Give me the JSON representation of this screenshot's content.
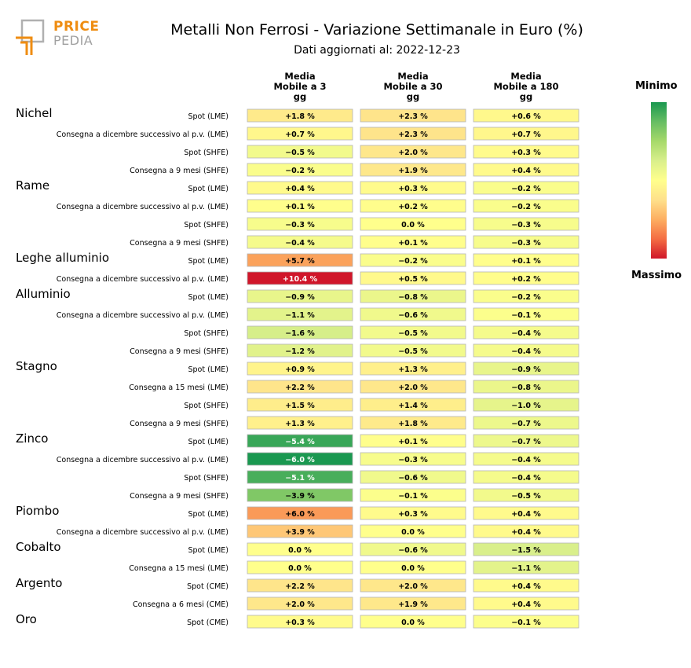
{
  "logo": {
    "line1": "PRICE",
    "line2": "PEDIA"
  },
  "title": "Metalli Non Ferrosi - Variazione Settimanale in Euro (%)",
  "subtitle": "Dati aggiornati al: 2022-12-23",
  "legend": {
    "min_label": "Minimo",
    "max_label": "Massimo",
    "colors": [
      "#d0162a",
      "#f46d43",
      "#fdae61",
      "#fee08b",
      "#ffff8c",
      "#d9ef8b",
      "#a6d96a",
      "#66bd63",
      "#1a9850"
    ]
  },
  "chart_data": {
    "type": "heatmap",
    "columns": [
      "Media\nMobile a 3\ngg",
      "Media\nMobile a 30\ngg",
      "Media\nMobile a 180\ngg"
    ],
    "groups": [
      {
        "name": "Nichel",
        "rows": [
          {
            "label": "Spot (LME)",
            "values": [
              1.8,
              2.3,
              0.6
            ]
          },
          {
            "label": "Consegna a dicembre successivo al p.v. (LME)",
            "values": [
              0.7,
              2.3,
              0.7
            ]
          },
          {
            "label": "Spot (SHFE)",
            "values": [
              -0.5,
              2.0,
              0.3
            ]
          },
          {
            "label": "Consegna a 9 mesi (SHFE)",
            "values": [
              -0.2,
              1.9,
              0.4
            ]
          }
        ]
      },
      {
        "name": "Rame",
        "rows": [
          {
            "label": "Spot (LME)",
            "values": [
              0.4,
              0.3,
              -0.2
            ]
          },
          {
            "label": "Consegna a dicembre successivo al p.v. (LME)",
            "values": [
              0.1,
              0.2,
              -0.2
            ]
          },
          {
            "label": "Spot (SHFE)",
            "values": [
              -0.3,
              0.0,
              -0.3
            ]
          },
          {
            "label": "Consegna a 9 mesi (SHFE)",
            "values": [
              -0.4,
              0.1,
              -0.3
            ]
          }
        ]
      },
      {
        "name": "Leghe alluminio",
        "rows": [
          {
            "label": "Spot (LME)",
            "values": [
              5.7,
              -0.2,
              0.1
            ]
          },
          {
            "label": "Consegna a dicembre successivo al p.v. (LME)",
            "values": [
              10.4,
              0.5,
              0.2
            ]
          }
        ]
      },
      {
        "name": "Alluminio",
        "rows": [
          {
            "label": "Spot (LME)",
            "values": [
              -0.9,
              -0.8,
              -0.2
            ]
          },
          {
            "label": "Consegna a dicembre successivo al p.v. (LME)",
            "values": [
              -1.1,
              -0.6,
              -0.1
            ]
          },
          {
            "label": "Spot (SHFE)",
            "values": [
              -1.6,
              -0.5,
              -0.4
            ]
          },
          {
            "label": "Consegna a 9 mesi (SHFE)",
            "values": [
              -1.2,
              -0.5,
              -0.4
            ]
          }
        ]
      },
      {
        "name": "Stagno",
        "rows": [
          {
            "label": "Spot (LME)",
            "values": [
              0.9,
              1.3,
              -0.9
            ]
          },
          {
            "label": "Consegna a 15 mesi (LME)",
            "values": [
              2.2,
              2.0,
              -0.8
            ]
          },
          {
            "label": "Spot (SHFE)",
            "values": [
              1.5,
              1.4,
              -1.0
            ]
          },
          {
            "label": "Consegna a 9 mesi (SHFE)",
            "values": [
              1.3,
              1.8,
              -0.7
            ]
          }
        ]
      },
      {
        "name": "Zinco",
        "rows": [
          {
            "label": "Spot (LME)",
            "values": [
              -5.4,
              0.1,
              -0.7
            ]
          },
          {
            "label": "Consegna a dicembre successivo al p.v. (LME)",
            "values": [
              -6.0,
              -0.3,
              -0.4
            ]
          },
          {
            "label": "Spot (SHFE)",
            "values": [
              -5.1,
              -0.6,
              -0.4
            ]
          },
          {
            "label": "Consegna a 9 mesi (SHFE)",
            "values": [
              -3.9,
              -0.1,
              -0.5
            ]
          }
        ]
      },
      {
        "name": "Piombo",
        "rows": [
          {
            "label": "Spot (LME)",
            "values": [
              6.0,
              0.3,
              0.4
            ]
          },
          {
            "label": "Consegna a dicembre successivo al p.v. (LME)",
            "values": [
              3.9,
              0.0,
              0.4
            ]
          }
        ]
      },
      {
        "name": "Cobalto",
        "rows": [
          {
            "label": "Spot (LME)",
            "values": [
              0.0,
              -0.6,
              -1.5
            ]
          },
          {
            "label": "Consegna a 15 mesi (LME)",
            "values": [
              0.0,
              0.0,
              -1.1
            ]
          }
        ]
      },
      {
        "name": "Argento",
        "rows": [
          {
            "label": "Spot (CME)",
            "values": [
              2.2,
              2.0,
              0.4
            ]
          },
          {
            "label": "Consegna a 6 mesi (CME)",
            "values": [
              2.0,
              1.9,
              0.4
            ]
          }
        ]
      },
      {
        "name": "Oro",
        "rows": [
          {
            "label": "Spot (CME)",
            "values": [
              0.3,
              0.0,
              -0.1
            ]
          }
        ]
      }
    ]
  }
}
